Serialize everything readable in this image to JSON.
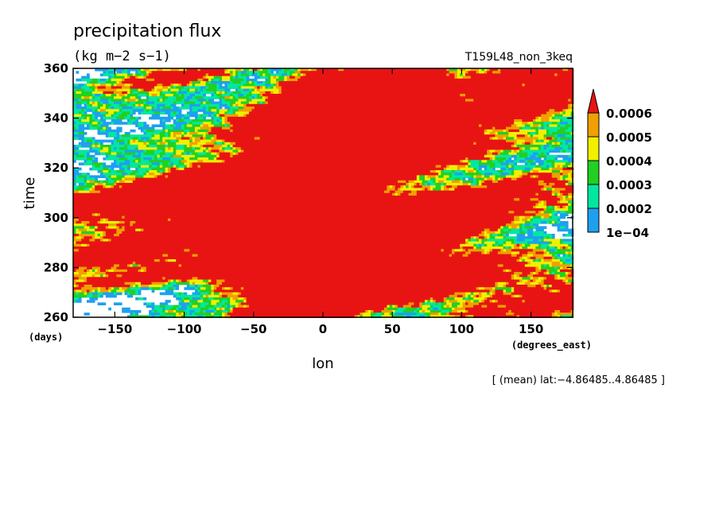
{
  "chart_data": {
    "type": "heatmap",
    "title": "precipitation flux",
    "units": "(kg m−2 s−1)",
    "run_label": "T159L48_non_3keq",
    "xlabel": "lon",
    "x_units": "(degrees_east)",
    "ylabel": "time",
    "y_units": "(days)",
    "xlim": [
      -180,
      180
    ],
    "ylim": [
      260,
      360
    ],
    "x_ticks": [
      -150,
      -100,
      -50,
      0,
      50,
      100,
      150
    ],
    "x_tick_labels": [
      "−150",
      "−100",
      "−50",
      "0",
      "50",
      "100",
      "150"
    ],
    "y_ticks": [
      260,
      280,
      300,
      320,
      340,
      360
    ],
    "y_tick_labels": [
      "260",
      "280",
      "300",
      "320",
      "340",
      "360"
    ],
    "footnote": "[ (mean) lat:−4.86485..4.86485 ]",
    "colorbar": {
      "levels": [
        0.0001,
        0.0002,
        0.0003,
        0.0004,
        0.0005,
        0.0006
      ],
      "labels": [
        "1e−04",
        "0.0002",
        "0.0003",
        "0.0004",
        "0.0005",
        "0.0006"
      ],
      "colors": [
        "#1ea0f0",
        "#00e8a0",
        "#22d022",
        "#f0f000",
        "#f0a000",
        "#e81414"
      ],
      "below_color": "#ffffff",
      "extend": "max"
    },
    "grid": false
  }
}
